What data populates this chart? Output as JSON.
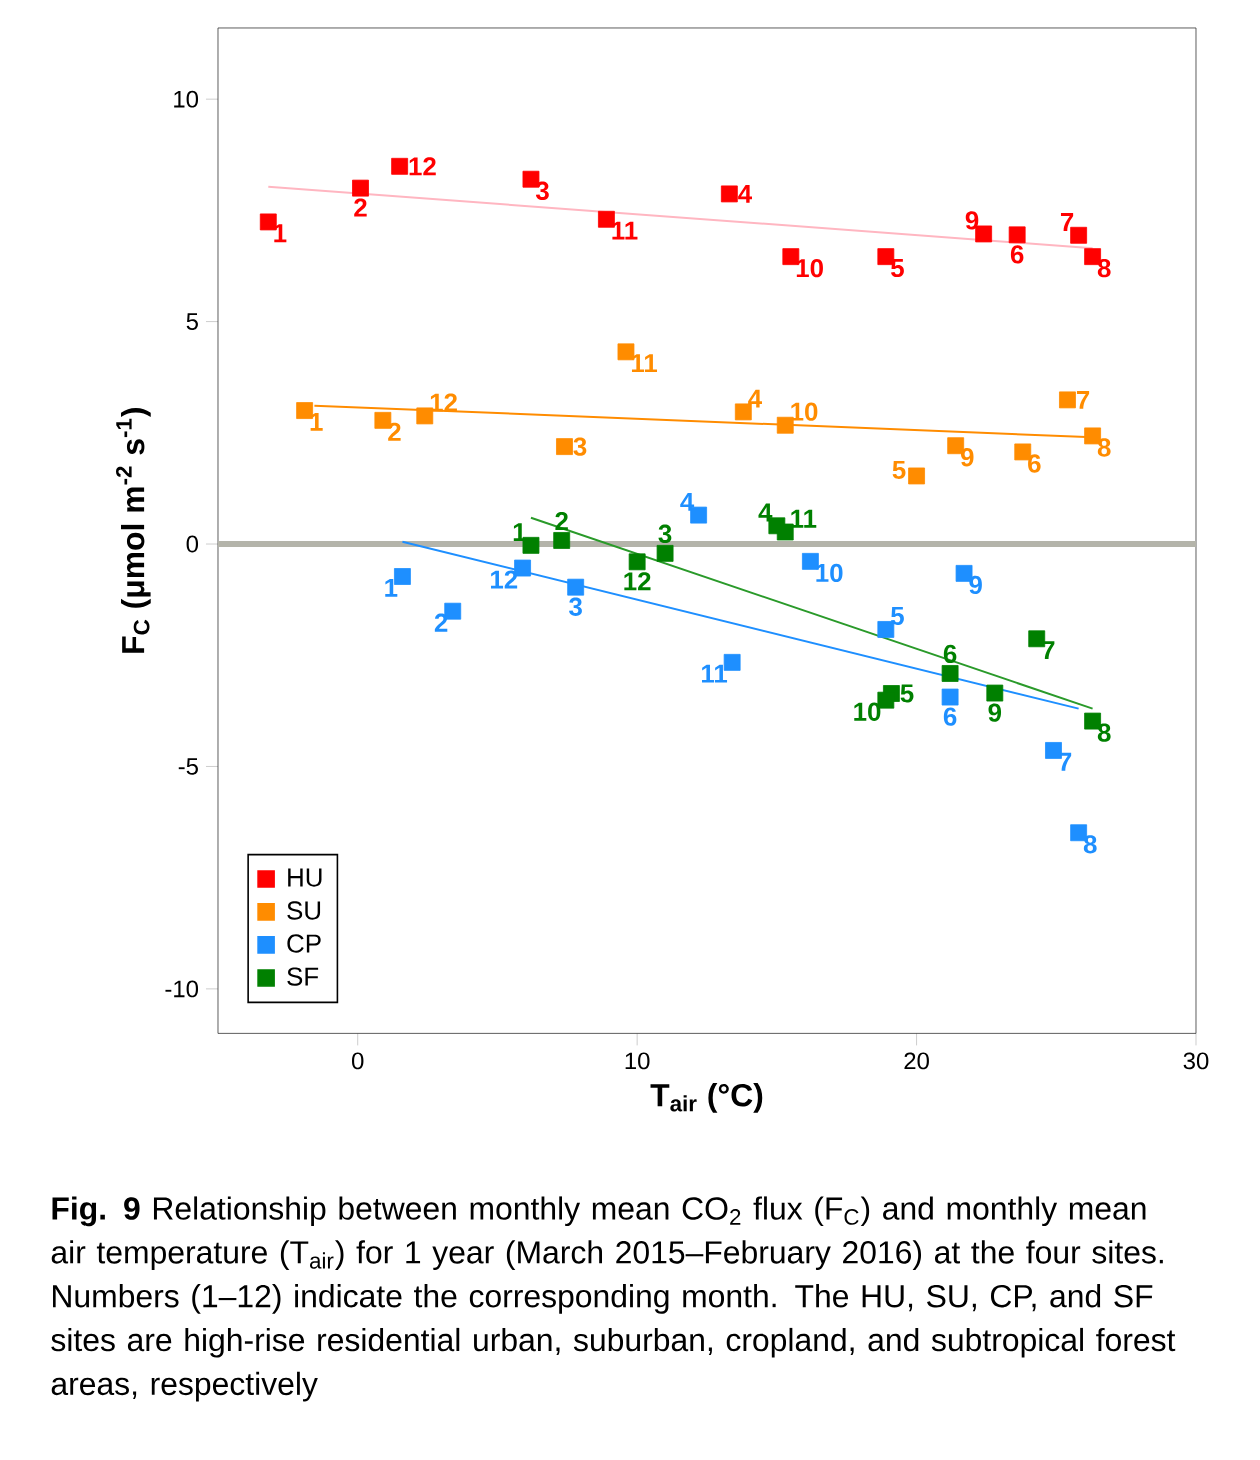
{
  "chart_data": {
    "type": "scatter",
    "xlabel": "T$_{air}$ (°C)",
    "ylabel": "F$_{C}$ (μmol m$^{-2}$ s$^{-1}$)",
    "xlim": [
      -5,
      30
    ],
    "ylim": [
      -11,
      11.6
    ],
    "xticks": [
      0,
      10,
      20,
      30
    ],
    "yticks": [
      -10,
      -5,
      0,
      5,
      10
    ],
    "marker": "square",
    "legend": "bottom left",
    "grid": false,
    "ref_lines": [
      {
        "axis": "y",
        "value": 0,
        "color": "#b4b4aa"
      }
    ],
    "series": [
      {
        "name": "HU",
        "color": "#ff0000",
        "x": [
          -3.2,
          0.1,
          6.2,
          13.3,
          18.9,
          23.6,
          25.8,
          26.3,
          22.4,
          15.5,
          8.9,
          1.5
        ],
        "values": [
          7.24,
          8.0,
          8.2,
          7.87,
          6.46,
          6.95,
          6.94,
          6.46,
          6.97,
          6.46,
          7.3,
          8.49
        ]
      },
      {
        "name": "SU",
        "color": "#ff8c00",
        "x": [
          -1.9,
          0.9,
          7.4,
          13.8,
          20.0,
          23.8,
          25.4,
          26.3,
          21.4,
          15.3,
          9.6,
          2.4
        ],
        "values": [
          3.0,
          2.78,
          2.19,
          2.97,
          1.53,
          2.07,
          3.24,
          2.43,
          2.21,
          2.67,
          4.32,
          2.88
        ]
      },
      {
        "name": "CP",
        "color": "#1e8fff",
        "x": [
          1.6,
          3.4,
          7.8,
          12.2,
          18.9,
          21.2,
          24.9,
          25.8,
          21.7,
          16.2,
          13.4,
          5.9
        ],
        "values": [
          -0.73,
          -1.51,
          -0.97,
          0.65,
          -1.92,
          -3.44,
          -4.64,
          -6.49,
          -0.66,
          -0.39,
          -2.66,
          -0.54
        ]
      },
      {
        "name": "SF",
        "color": "#008000",
        "x": [
          6.2,
          7.3,
          11.0,
          15.0,
          19.1,
          21.2,
          24.3,
          26.3,
          22.8,
          18.9,
          15.3,
          10.0
        ],
        "values": [
          -0.03,
          0.08,
          -0.21,
          0.41,
          -3.36,
          -2.91,
          -2.13,
          -3.98,
          -3.35,
          -3.51,
          0.27,
          -0.4
        ]
      },
      {
        "type": "line",
        "marker": "none",
        "color": "#ffb6c1",
        "x": [
          -3.2,
          26.3
        ],
        "values": [
          8.03,
          6.65
        ]
      },
      {
        "type": "line",
        "marker": "none",
        "color": "#ff8c00",
        "x": [
          -1.55,
          26.3
        ],
        "values": [
          3.11,
          2.4
        ]
      },
      {
        "type": "line",
        "marker": "none",
        "color": "#1e8fff",
        "x": [
          1.6,
          25.8
        ],
        "values": [
          0.05,
          -3.7
        ]
      },
      {
        "type": "line",
        "marker": "none",
        "color": "#2a9a2a",
        "x": [
          6.2,
          26.3
        ],
        "values": [
          0.59,
          -3.7
        ]
      }
    ],
    "annotations": [
      "**Fig. 9** Relationship between monthly mean CO$_{2}$ flux (F$_{C}$) and monthly mean air temperature (T$_{air}$) for 1 year (March 2015–February 2016) at the four sites. Numbers (1–12) indicate the corresponding month. The HU, SU, CP, and SF sites are high-rise residential urban, suburban, cropland, and subtropical forest areas, respectively",
      {
        "text": "1",
        "x": -3.2,
        "y": 7.24
      },
      {
        "text": "2",
        "x": 0.1,
        "y": 8.0
      },
      {
        "text": "3",
        "x": 6.2,
        "y": 8.2
      },
      {
        "text": "4",
        "x": 13.3,
        "y": 7.87
      },
      {
        "text": "5",
        "x": 18.9,
        "y": 6.46
      },
      {
        "text": "6",
        "x": 23.6,
        "y": 6.95
      },
      {
        "text": "7",
        "x": 25.8,
        "y": 6.94
      },
      {
        "text": "8",
        "x": 26.3,
        "y": 6.46
      },
      {
        "text": "9",
        "x": 22.4,
        "y": 6.97
      },
      {
        "text": "10",
        "x": 15.5,
        "y": 6.46
      },
      {
        "text": "11",
        "x": 8.9,
        "y": 7.3
      },
      {
        "text": "12",
        "x": 1.5,
        "y": 8.49
      },
      {
        "text": "1",
        "x": -1.9,
        "y": 3.0
      },
      {
        "text": "2",
        "x": 0.9,
        "y": 2.78
      },
      {
        "text": "3",
        "x": 7.4,
        "y": 2.19
      },
      {
        "text": "4",
        "x": 13.8,
        "y": 2.97
      },
      {
        "text": "5",
        "x": 20.0,
        "y": 1.53
      },
      {
        "text": "6",
        "x": 23.8,
        "y": 2.07
      },
      {
        "text": "7",
        "x": 25.4,
        "y": 3.24
      },
      {
        "text": "8",
        "x": 26.3,
        "y": 2.43
      },
      {
        "text": "9",
        "x": 21.4,
        "y": 2.21
      },
      {
        "text": "10",
        "x": 15.3,
        "y": 2.67
      },
      {
        "text": "11",
        "x": 9.6,
        "y": 4.32
      },
      {
        "text": "12",
        "x": 2.4,
        "y": 2.88
      },
      {
        "text": "1",
        "x": 1.6,
        "y": -0.73
      },
      {
        "text": "2",
        "x": 3.4,
        "y": -1.51
      },
      {
        "text": "3",
        "x": 7.8,
        "y": -0.97
      },
      {
        "text": "4",
        "x": 12.2,
        "y": 0.65
      },
      {
        "text": "5",
        "x": 18.9,
        "y": -1.92
      },
      {
        "text": "6",
        "x": 21.2,
        "y": -3.44
      },
      {
        "text": "7",
        "x": 24.9,
        "y": -4.64
      },
      {
        "text": "8",
        "x": 25.8,
        "y": -6.49
      },
      {
        "text": "9",
        "x": 21.7,
        "y": -0.66
      },
      {
        "text": "10",
        "x": 16.2,
        "y": -0.39
      },
      {
        "text": "11",
        "x": 13.4,
        "y": -2.66
      },
      {
        "text": "12",
        "x": 5.9,
        "y": -0.54
      },
      {
        "text": "1",
        "x": 6.2,
        "y": -0.03
      },
      {
        "text": "2",
        "x": 7.3,
        "y": 0.08
      },
      {
        "text": "3",
        "x": 11.0,
        "y": -0.21
      },
      {
        "text": "4",
        "x": 15.0,
        "y": 0.41
      },
      {
        "text": "5",
        "x": 19.1,
        "y": -3.36
      },
      {
        "text": "6",
        "x": 21.2,
        "y": -2.91
      },
      {
        "text": "7",
        "x": 24.3,
        "y": -2.13
      },
      {
        "text": "8",
        "x": 26.3,
        "y": -3.98
      },
      {
        "text": "9",
        "x": 22.8,
        "y": -3.35
      },
      {
        "text": "10",
        "x": 18.9,
        "y": -3.51
      },
      {
        "text": "11",
        "x": 15.3,
        "y": 0.27
      },
      {
        "text": "12",
        "x": 10.0,
        "y": -0.4
      }
    ]
  }
}
